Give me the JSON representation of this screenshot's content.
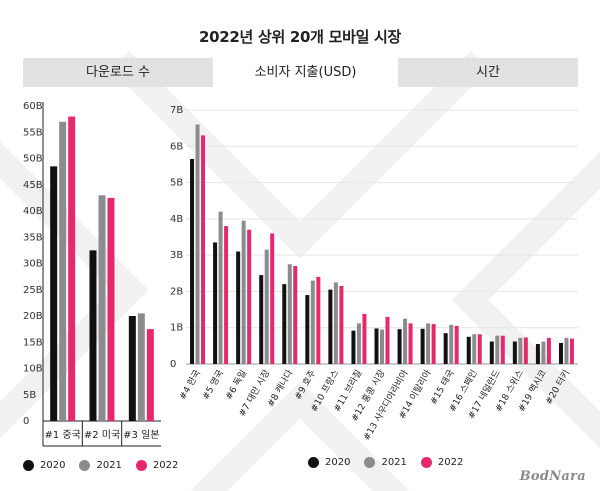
{
  "title": "2022년 상위 20개 모바일 시장",
  "tabs": [
    {
      "label": "다운로드 수",
      "active": false
    },
    {
      "label": "소비자 지출(USD)",
      "active": true
    },
    {
      "label": "시간",
      "active": false
    }
  ],
  "colors": {
    "2020": "#111111",
    "2021": "#8c8c8c",
    "2022": "#e8286e",
    "tab_bg": "#e2e2e2",
    "grid": "#e6e6e6"
  },
  "legend": [
    {
      "label": "2020",
      "color": "#111111"
    },
    {
      "label": "2021",
      "color": "#8c8c8c"
    },
    {
      "label": "2022",
      "color": "#e8286e"
    }
  ],
  "logo": "BodNara",
  "chart_data": [
    {
      "type": "bar",
      "title": "다운로드 수",
      "categories": [
        "#1 중국",
        "#2 미국",
        "#3 일본"
      ],
      "series": [
        {
          "name": "2020",
          "values": [
            48.5,
            32.5,
            20.0
          ]
        },
        {
          "name": "2021",
          "values": [
            57.0,
            43.0,
            20.5
          ]
        },
        {
          "name": "2022",
          "values": [
            58.0,
            42.5,
            17.5
          ]
        }
      ],
      "yticks": [
        "0",
        "5B",
        "10B",
        "15B",
        "20B",
        "25B",
        "30B",
        "35B",
        "40B",
        "45B",
        "50B",
        "55B",
        "60B"
      ],
      "ylim": [
        0,
        60
      ],
      "grid": false,
      "legend_position": "bottom-left"
    },
    {
      "type": "bar",
      "title": "소비자 지출(USD)",
      "categories": [
        "#4 한국",
        "#5 영국",
        "#6 독일",
        "#7 대만 시장",
        "#8 캐나다",
        "#9 호주",
        "#10 프랑스",
        "#11 브라질",
        "#12 홍콩 시장",
        "#13 사우디아라비아",
        "#14 이탈리아",
        "#15 태국",
        "#16 스페인",
        "#17 네덜란드",
        "#18 스위스",
        "#19 멕시코",
        "#20 터키"
      ],
      "series": [
        {
          "name": "2020",
          "values": [
            5.65,
            3.35,
            3.1,
            2.45,
            2.2,
            1.9,
            2.05,
            0.92,
            0.98,
            0.96,
            0.97,
            0.85,
            0.75,
            0.62,
            0.62,
            0.55,
            0.58
          ]
        },
        {
          "name": "2021",
          "values": [
            6.6,
            4.2,
            3.95,
            3.15,
            2.75,
            2.3,
            2.25,
            1.12,
            0.95,
            1.25,
            1.12,
            1.08,
            0.82,
            0.78,
            0.72,
            0.62,
            0.72
          ]
        },
        {
          "name": "2022",
          "values": [
            6.3,
            3.8,
            3.7,
            3.6,
            2.7,
            2.4,
            2.15,
            1.38,
            1.3,
            1.12,
            1.1,
            1.05,
            0.82,
            0.78,
            0.73,
            0.72,
            0.7
          ]
        }
      ],
      "yticks": [
        "0",
        "1B",
        "2B",
        "3B",
        "4B",
        "5B",
        "6B",
        "7B"
      ],
      "ylim": [
        0,
        7
      ],
      "grid": true,
      "legend_position": "bottom-center"
    }
  ]
}
